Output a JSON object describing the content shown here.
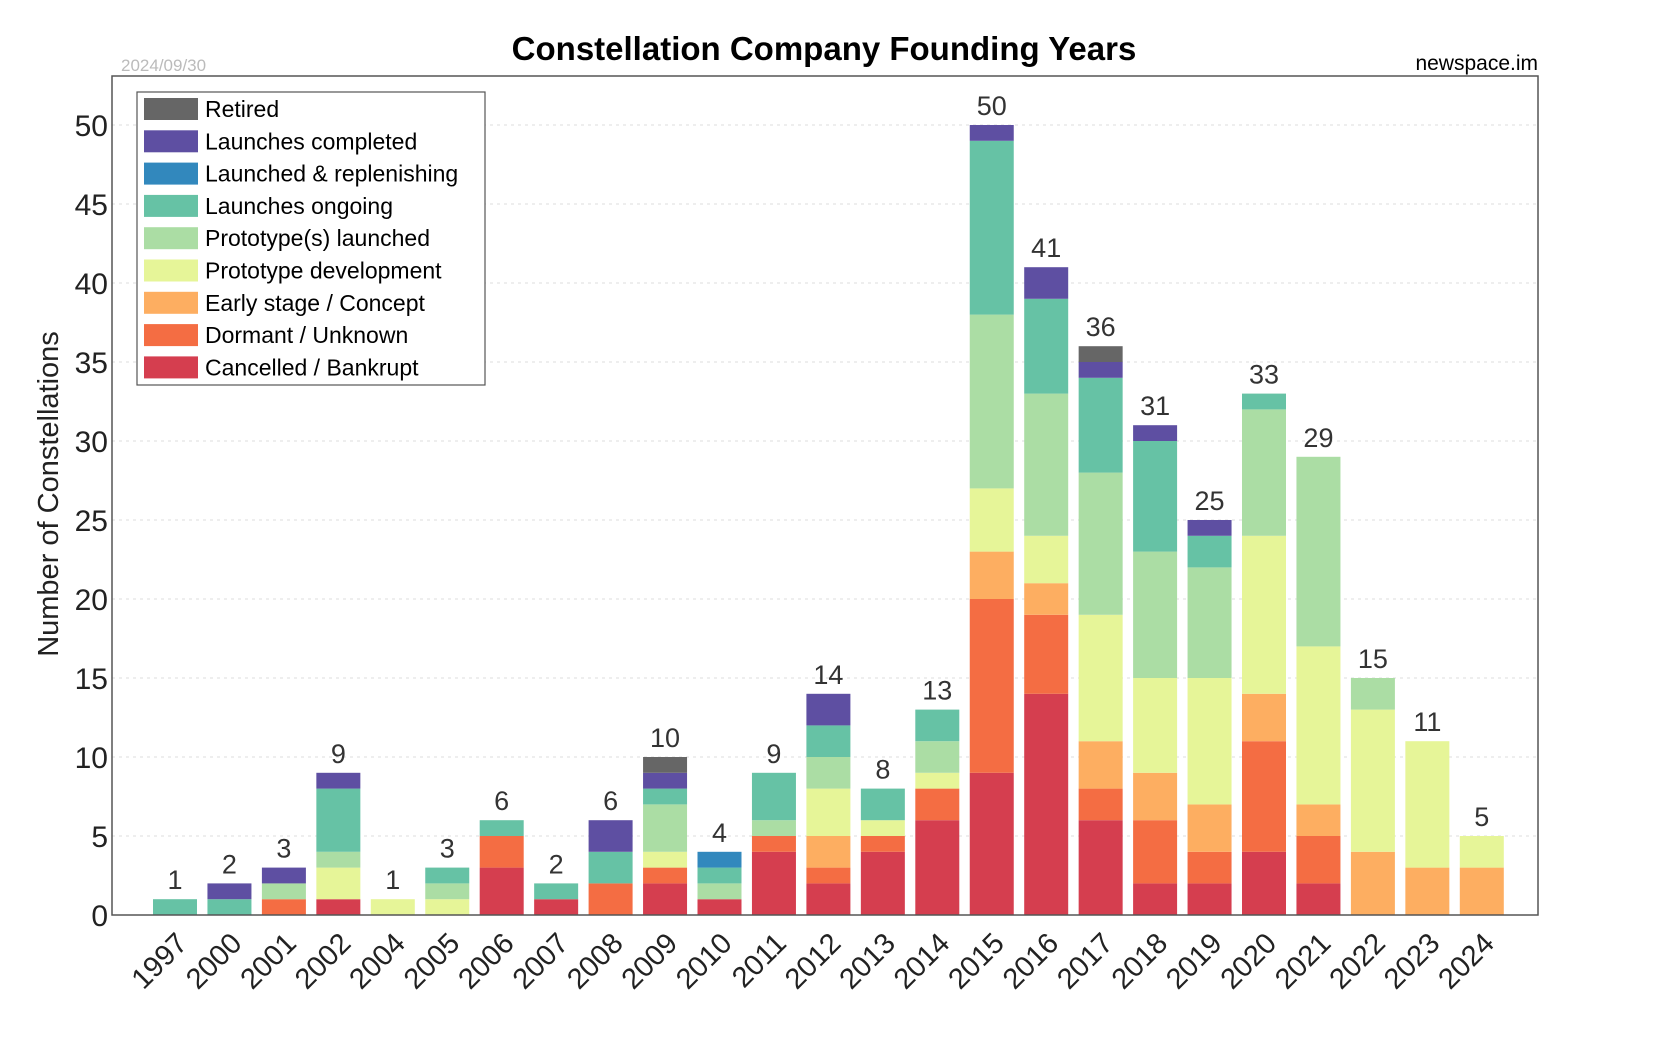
{
  "chart_data": {
    "type": "bar",
    "stacked": true,
    "title": "Constellation Company Founding Years",
    "date_label": "2024/09/30",
    "source_label": "newspace.im",
    "ylabel": "Number of Constellations",
    "xlabel": "",
    "ylim": [
      0,
      53
    ],
    "yticks": [
      0,
      5,
      10,
      15,
      20,
      25,
      30,
      35,
      40,
      45,
      50
    ],
    "grid": true,
    "legend_position": "top-left",
    "categories": [
      "1997",
      "2000",
      "2001",
      "2002",
      "2004",
      "2005",
      "2006",
      "2007",
      "2008",
      "2009",
      "2010",
      "2011",
      "2012",
      "2013",
      "2014",
      "2015",
      "2016",
      "2017",
      "2018",
      "2019",
      "2020",
      "2021",
      "2022",
      "2023",
      "2024"
    ],
    "series": [
      {
        "name": "Cancelled / Bankrupt",
        "color": "#d53e4f",
        "values": [
          0,
          0,
          0,
          1,
          0,
          0,
          3,
          1,
          0,
          2,
          1,
          4,
          2,
          4,
          6,
          9,
          14,
          6,
          2,
          2,
          4,
          2,
          0,
          0,
          0
        ]
      },
      {
        "name": "Dormant / Unknown",
        "color": "#f46d43",
        "values": [
          0,
          0,
          1,
          0,
          0,
          0,
          2,
          0,
          2,
          1,
          0,
          1,
          1,
          1,
          2,
          11,
          5,
          2,
          4,
          2,
          7,
          3,
          0,
          0,
          0
        ]
      },
      {
        "name": "Early stage / Concept",
        "color": "#fdae61",
        "values": [
          0,
          0,
          0,
          0,
          0,
          0,
          0,
          0,
          0,
          0,
          0,
          0,
          2,
          0,
          0,
          3,
          2,
          3,
          3,
          3,
          3,
          2,
          4,
          3,
          3
        ]
      },
      {
        "name": "Prototype development",
        "color": "#e6f598",
        "values": [
          0,
          0,
          0,
          2,
          1,
          1,
          0,
          0,
          0,
          1,
          0,
          0,
          3,
          1,
          1,
          4,
          3,
          8,
          6,
          8,
          10,
          10,
          9,
          8,
          2
        ]
      },
      {
        "name": "Prototype(s) launched",
        "color": "#abdda4",
        "values": [
          0,
          0,
          1,
          1,
          0,
          1,
          0,
          0,
          0,
          3,
          1,
          1,
          2,
          0,
          2,
          11,
          9,
          9,
          8,
          7,
          8,
          12,
          2,
          0,
          0
        ]
      },
      {
        "name": "Launches ongoing",
        "color": "#66c2a5",
        "values": [
          1,
          1,
          0,
          4,
          0,
          1,
          1,
          1,
          2,
          1,
          1,
          3,
          2,
          2,
          2,
          11,
          6,
          6,
          7,
          2,
          1,
          0,
          0,
          0,
          0
        ]
      },
      {
        "name": "Launched & replenishing",
        "color": "#3288bd",
        "values": [
          0,
          0,
          0,
          0,
          0,
          0,
          0,
          0,
          0,
          0,
          1,
          0,
          0,
          0,
          0,
          0,
          0,
          0,
          0,
          0,
          0,
          0,
          0,
          0,
          0
        ]
      },
      {
        "name": "Launches completed",
        "color": "#5e4fa2",
        "values": [
          0,
          1,
          1,
          1,
          0,
          0,
          0,
          0,
          2,
          1,
          0,
          0,
          2,
          0,
          0,
          1,
          2,
          1,
          1,
          1,
          0,
          0,
          0,
          0,
          0
        ]
      },
      {
        "name": "Retired",
        "color": "#666666",
        "values": [
          0,
          0,
          0,
          0,
          0,
          0,
          0,
          0,
          0,
          1,
          0,
          0,
          0,
          0,
          0,
          0,
          0,
          1,
          0,
          0,
          0,
          0,
          0,
          0,
          0
        ]
      }
    ],
    "totals": [
      1,
      2,
      3,
      9,
      1,
      3,
      6,
      2,
      6,
      10,
      4,
      9,
      14,
      8,
      13,
      50,
      41,
      36,
      31,
      25,
      33,
      29,
      15,
      11,
      5
    ],
    "legend_order": [
      "Retired",
      "Launches completed",
      "Launched & replenishing",
      "Launches ongoing",
      "Prototype(s) launched",
      "Prototype development",
      "Early stage / Concept",
      "Dormant / Unknown",
      "Cancelled / Bankrupt"
    ]
  }
}
